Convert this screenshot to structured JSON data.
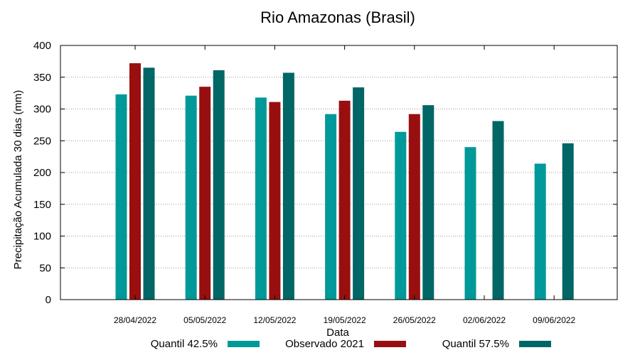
{
  "chart_data": {
    "type": "bar",
    "title": "Rio Amazonas (Brasil)",
    "xlabel": "Data",
    "ylabel": "Precipitação Acumulada 30 dias (mm)",
    "ylim": [
      0,
      400
    ],
    "yticks": [
      "0",
      "50",
      "100",
      "150",
      "200",
      "250",
      "300",
      "350",
      "400"
    ],
    "grid": true,
    "legend_position": "bottom",
    "categories": [
      "28/04/2022",
      "05/05/2022",
      "12/05/2022",
      "19/05/2022",
      "26/05/2022",
      "02/06/2022",
      "09/06/2022"
    ],
    "series": [
      {
        "name": "Quantil 42.5%",
        "color": "#009999",
        "values": [
          323,
          321,
          318,
          292,
          264,
          240,
          214
        ]
      },
      {
        "name": "Observado 2021",
        "color": "#990f0f",
        "values": [
          372,
          335,
          311,
          313,
          292,
          null,
          null
        ]
      },
      {
        "name": "Quantil 57.5%",
        "color": "#006666",
        "values": [
          365,
          361,
          357,
          334,
          306,
          281,
          246
        ]
      }
    ]
  }
}
